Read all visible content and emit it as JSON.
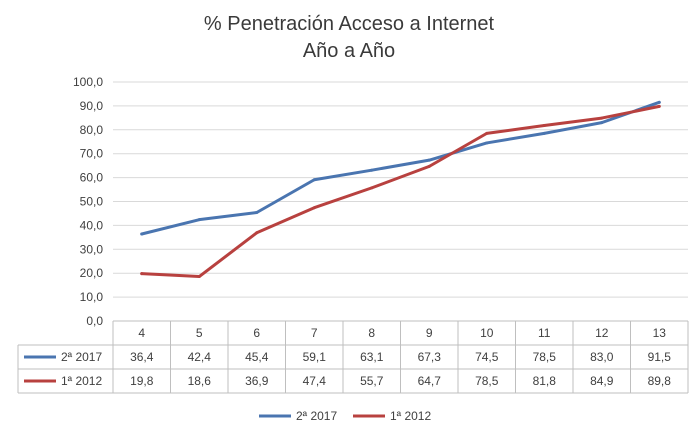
{
  "chart_data": {
    "type": "line",
    "title": "% Penetración  Acceso a Internet",
    "subtitle": "Año a Año",
    "categories": [
      "4",
      "5",
      "6",
      "7",
      "8",
      "9",
      "10",
      "11",
      "12",
      "13"
    ],
    "ylim": [
      0,
      100
    ],
    "yticks": [
      "0,0",
      "10,0",
      "20,0",
      "30,0",
      "40,0",
      "50,0",
      "60,0",
      "70,0",
      "80,0",
      "90,0",
      "100,0"
    ],
    "ytick_values": [
      0,
      10,
      20,
      30,
      40,
      50,
      60,
      70,
      80,
      90,
      100
    ],
    "grid": true,
    "legend": "bottom",
    "data_table": true,
    "series": [
      {
        "name": "2ª 2017",
        "color": "#4a75b0",
        "values": [
          36.4,
          42.4,
          45.4,
          59.1,
          63.1,
          67.3,
          74.5,
          78.5,
          83.0,
          91.5
        ],
        "labels": [
          "36,4",
          "42,4",
          "45,4",
          "59,1",
          "63,1",
          "67,3",
          "74,5",
          "78,5",
          "83,0",
          "91,5"
        ]
      },
      {
        "name": "1ª 2012",
        "color": "#b8413f",
        "values": [
          19.8,
          18.6,
          36.9,
          47.4,
          55.7,
          64.7,
          78.5,
          81.8,
          84.9,
          89.8
        ],
        "labels": [
          "19,8",
          "18,6",
          "36,9",
          "47,4",
          "55,7",
          "64,7",
          "78,5",
          "81,8",
          "84,9",
          "89,8"
        ]
      }
    ]
  }
}
